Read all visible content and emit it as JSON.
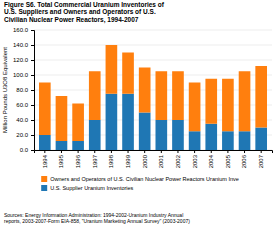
{
  "chart_data": {
    "type": "bar",
    "stacked": true,
    "title": "Figure S6.  Total Commercial Uranium Inventories of\nU.S. Suppliers and Owners and Operators of U.S.\nCivilian Nuclear Power Reactors, 1994-2007",
    "ylabel": "Million Pounds U3O8 Equivalent",
    "categories": [
      "1994",
      "1995",
      "1996",
      "1997",
      "1998",
      "1999",
      "2000",
      "2001",
      "2002",
      "2003",
      "2004",
      "2005",
      "2006",
      "2007"
    ],
    "series": [
      {
        "name": "U.S. Supplier Uranium Inventories",
        "values": [
          20,
          12,
          12,
          40,
          75,
          75,
          50,
          40,
          40,
          25,
          35,
          25,
          25,
          30
        ]
      },
      {
        "name": "Owners and Operators of U.S. Civilian Nuclear Power Reactors Uranium Inve",
        "values": [
          70,
          60,
          50,
          65,
          65,
          55,
          60,
          65,
          65,
          65,
          60,
          70,
          80,
          82
        ]
      }
    ],
    "ylim": [
      0,
      160
    ],
    "yticks": [
      {
        "value": 0,
        "label": "0.0"
      },
      {
        "value": 20,
        "label": "20.0"
      },
      {
        "value": 40,
        "label": "40.0"
      },
      {
        "value": 60,
        "label": "60.0"
      },
      {
        "value": 80,
        "label": "80.0"
      },
      {
        "value": 100,
        "label": "100.0"
      },
      {
        "value": 120,
        "label": "120.0"
      },
      {
        "value": 140,
        "label": "140.0"
      },
      {
        "value": 160,
        "label": "160.0"
      }
    ],
    "grid": true,
    "legend": "bottom",
    "annotations": [
      "Sources: Energy Information Administration: 1994-2002-Uranium Industry Annual\nreports, 2003-2007-Form EIA-858, \"Uranium Marketing Annual Survey\" (2003-2007)"
    ]
  }
}
